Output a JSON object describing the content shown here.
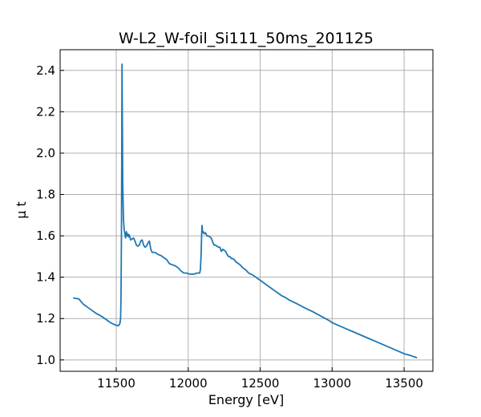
{
  "chart_data": {
    "type": "line",
    "title": "W-L2_W-foil_Si111_50ms_201125",
    "xlabel": "Energy [eV]",
    "ylabel": "μ t",
    "xlim": [
      11110,
      13700
    ],
    "ylim": [
      0.945,
      2.5
    ],
    "xticks": [
      11500,
      12000,
      12500,
      13000,
      13500
    ],
    "yticks": [
      1.0,
      1.2,
      1.4,
      1.6,
      1.8,
      2.0,
      2.2,
      2.4
    ],
    "xtick_labels": [
      "11500",
      "12000",
      "12500",
      "13000",
      "13500"
    ],
    "ytick_labels": [
      "1.0",
      "1.2",
      "1.4",
      "1.6",
      "1.8",
      "2.0",
      "2.2",
      "2.4"
    ],
    "grid": true,
    "line_color": "#1f77b4",
    "series": [
      {
        "x": [
          11200,
          11240,
          11270,
          11300,
          11330,
          11360,
          11400,
          11430,
          11460,
          11490,
          11515,
          11525,
          11530,
          11533,
          11536,
          11538,
          11540,
          11542,
          11545,
          11550,
          11555,
          11560,
          11565,
          11570,
          11575,
          11580,
          11585,
          11590,
          11600,
          11610,
          11620,
          11630,
          11640,
          11650,
          11660,
          11670,
          11680,
          11690,
          11700,
          11710,
          11720,
          11730,
          11740,
          11750,
          11760,
          11770,
          11790,
          11810,
          11830,
          11850,
          11870,
          11890,
          11910,
          11930,
          11950,
          11970,
          11990,
          12010,
          12040,
          12060,
          12080,
          12085,
          12090,
          12093,
          12096,
          12100,
          12105,
          12110,
          12120,
          12130,
          12140,
          12150,
          12160,
          12170,
          12180,
          12190,
          12200,
          12210,
          12220,
          12230,
          12240,
          12250,
          12260,
          12270,
          12280,
          12290,
          12300,
          12310,
          12320,
          12330,
          12340,
          12360,
          12380,
          12400,
          12420,
          12450,
          12480,
          12500,
          12520,
          12550,
          12580,
          12600,
          12620,
          12650,
          12680,
          12700,
          12730,
          12760,
          12800,
          12830,
          12860,
          12900,
          12940,
          12980,
          13000,
          13050,
          13100,
          13150,
          13200,
          13250,
          13300,
          13350,
          13400,
          13450,
          13500,
          13550,
          13590
        ],
        "y": [
          1.3,
          1.295,
          1.27,
          1.255,
          1.24,
          1.225,
          1.21,
          1.195,
          1.18,
          1.17,
          1.165,
          1.175,
          1.2,
          1.3,
          1.6,
          1.95,
          2.43,
          2.2,
          1.85,
          1.68,
          1.63,
          1.61,
          1.59,
          1.62,
          1.6,
          1.61,
          1.595,
          1.605,
          1.58,
          1.585,
          1.59,
          1.575,
          1.555,
          1.55,
          1.555,
          1.575,
          1.58,
          1.555,
          1.545,
          1.55,
          1.565,
          1.575,
          1.535,
          1.52,
          1.52,
          1.52,
          1.51,
          1.505,
          1.495,
          1.485,
          1.465,
          1.46,
          1.455,
          1.445,
          1.43,
          1.42,
          1.42,
          1.415,
          1.415,
          1.42,
          1.42,
          1.44,
          1.52,
          1.6,
          1.65,
          1.615,
          1.62,
          1.61,
          1.615,
          1.6,
          1.6,
          1.595,
          1.59,
          1.57,
          1.555,
          1.555,
          1.55,
          1.545,
          1.545,
          1.525,
          1.535,
          1.53,
          1.525,
          1.51,
          1.5,
          1.5,
          1.49,
          1.49,
          1.485,
          1.475,
          1.47,
          1.46,
          1.445,
          1.435,
          1.42,
          1.41,
          1.395,
          1.385,
          1.375,
          1.36,
          1.345,
          1.335,
          1.325,
          1.31,
          1.3,
          1.29,
          1.28,
          1.27,
          1.255,
          1.245,
          1.235,
          1.22,
          1.205,
          1.19,
          1.18,
          1.165,
          1.15,
          1.135,
          1.12,
          1.105,
          1.09,
          1.075,
          1.06,
          1.045,
          1.03,
          1.02,
          1.01
        ]
      }
    ]
  }
}
